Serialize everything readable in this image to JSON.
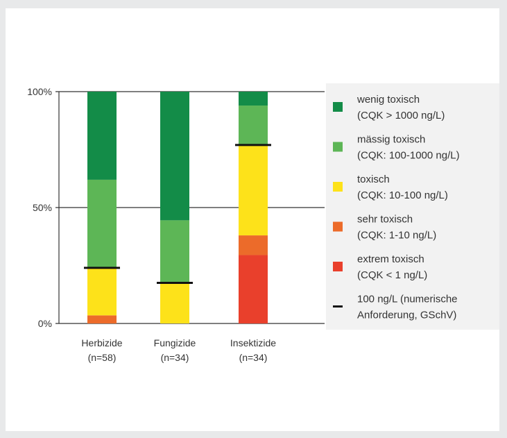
{
  "chart_data": {
    "type": "bar",
    "stacked": true,
    "categories": [
      "Herbizide",
      "Fungizide",
      "Insektizide"
    ],
    "category_counts": [
      "(n=58)",
      "(n=34)",
      "(n=34)"
    ],
    "ylim": [
      0,
      100
    ],
    "y_ticks": [
      {
        "value": 0,
        "label": "0%"
      },
      {
        "value": 50,
        "label": "50%"
      },
      {
        "value": 100,
        "label": "100%"
      }
    ],
    "series": [
      {
        "name": "extrem toxisch (CQK < 1 ng/L)",
        "color": "#e9402c",
        "values": [
          0,
          0,
          29.5
        ]
      },
      {
        "name": "sehr toxisch (CQK: 1-10 ng/L)",
        "color": "#ec6b2a",
        "values": [
          3.5,
          0,
          8.5
        ]
      },
      {
        "name": "toxisch (CQK: 10-100 ng/L)",
        "color": "#fde21a",
        "values": [
          20.5,
          17.5,
          39
        ]
      },
      {
        "name": "mässig toxisch (CQK: 100-1000 ng/L)",
        "color": "#5db656",
        "values": [
          38,
          27,
          17
        ]
      },
      {
        "name": "wenig toxisch (CQK > 1000 ng/L)",
        "color": "#138c48",
        "values": [
          38,
          55.5,
          6
        ]
      }
    ],
    "threshold_markers": {
      "name": "100 ng/L (numerische Anforderung, GSchV)",
      "color": "#111111",
      "values": [
        24,
        17.5,
        77
      ]
    },
    "grid": "horizontal at 50%",
    "legend_position": "right"
  },
  "legend": {
    "items": [
      {
        "line1": "wenig toxisch",
        "line2": "(CQK > 1000 ng/L)",
        "color": "#138c48",
        "kind": "box"
      },
      {
        "line1": "mässig toxisch",
        "line2": "(CQK: 100-1000 ng/L)",
        "color": "#5db656",
        "kind": "box"
      },
      {
        "line1": "toxisch",
        "line2": "(CQK: 10-100 ng/L)",
        "color": "#fde21a",
        "kind": "box"
      },
      {
        "line1": "sehr toxisch",
        "line2": "(CQK: 1-10 ng/L)",
        "color": "#ec6b2a",
        "kind": "box"
      },
      {
        "line1": "extrem toxisch",
        "line2": "(CQK < 1 ng/L)",
        "color": "#e9402c",
        "kind": "box"
      },
      {
        "line1": "100 ng/L (numerische",
        "line2": "Anforderung, GSchV)",
        "color": "#111111",
        "kind": "line"
      }
    ]
  }
}
